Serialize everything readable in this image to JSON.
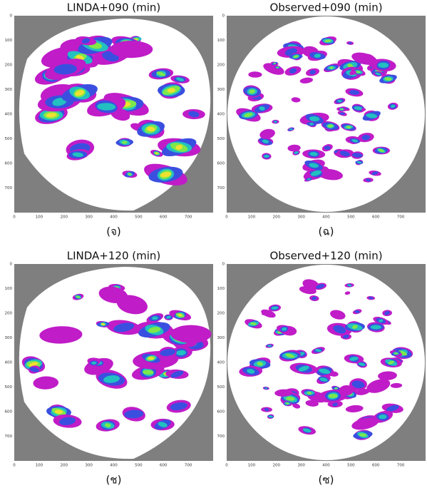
{
  "panels": [
    {
      "title": "LINDA+090 (min)",
      "caption": "(จ)",
      "xlim": [
        0,
        800
      ],
      "ylim": [
        0,
        800
      ],
      "xticks": [
        0,
        100,
        200,
        300,
        400,
        500,
        600,
        700
      ],
      "yticks": [
        0,
        100,
        200,
        300,
        400,
        500,
        600,
        700
      ]
    },
    {
      "title": "Observed+090 (min)",
      "caption": "(ฉ)",
      "xlim": [
        0,
        800
      ],
      "ylim": [
        0,
        800
      ],
      "xticks": [
        0,
        100,
        200,
        300,
        400,
        500,
        600,
        700
      ],
      "yticks": [
        0,
        100,
        200,
        300,
        400,
        500,
        600,
        700
      ]
    },
    {
      "title": "LINDA+120 (min)",
      "caption": "(ช)",
      "xlim": [
        0,
        800
      ],
      "ylim": [
        0,
        800
      ],
      "xticks": [
        0,
        100,
        200,
        300,
        400,
        500,
        600,
        700
      ],
      "yticks": [
        0,
        100,
        200,
        300,
        400,
        500,
        600,
        700
      ]
    },
    {
      "title": "Observed+120 (min)",
      "caption": "(ซ)",
      "xlim": [
        0,
        800
      ],
      "ylim": [
        0,
        800
      ],
      "xticks": [
        0,
        100,
        200,
        300,
        400,
        500,
        600,
        700
      ],
      "yticks": [
        0,
        100,
        200,
        300,
        400,
        500,
        600,
        700
      ]
    }
  ]
}
